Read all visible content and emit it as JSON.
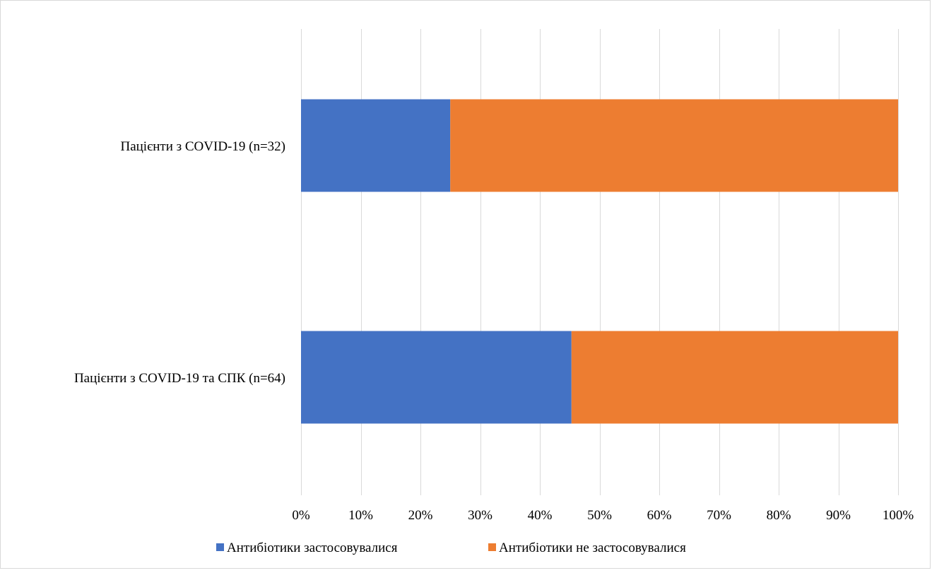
{
  "chart_data": {
    "type": "bar",
    "orientation": "horizontal",
    "stacked": "percent",
    "title": "",
    "xlabel": "",
    "ylabel": "",
    "categories": [
      "Пацієнти з COVID-19 (n=32)",
      "Пацієнти з COVID-19 та СПК (n=64)"
    ],
    "series": [
      {
        "name": "Антибіотики застосовувалися",
        "color": "#4472C4",
        "values": [
          25,
          45.3
        ]
      },
      {
        "name": "Антибіотики не застосовувалися",
        "color": "#ED7D31",
        "values": [
          75,
          54.7
        ]
      }
    ],
    "xlim": [
      0,
      100
    ],
    "x_ticks": [
      "0%",
      "10%",
      "20%",
      "30%",
      "40%",
      "50%",
      "60%",
      "70%",
      "80%",
      "90%",
      "100%"
    ],
    "grid": true,
    "grid_color": "#d9d9d9",
    "legend": "bottom"
  }
}
